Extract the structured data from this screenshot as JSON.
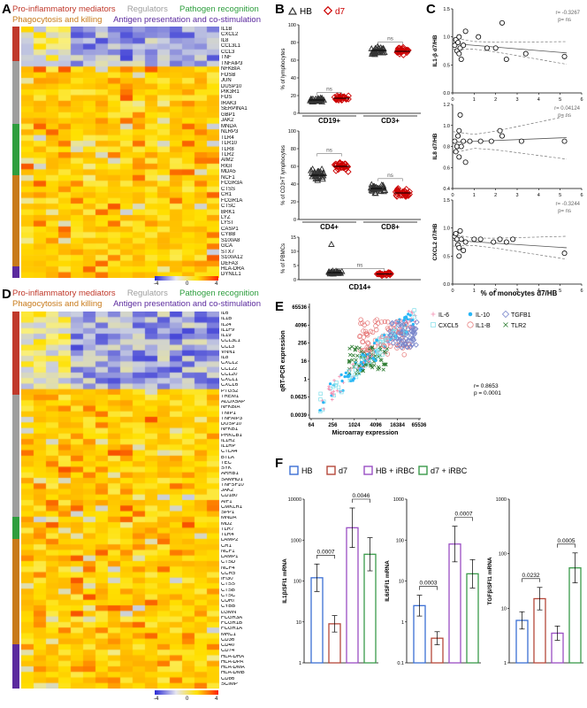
{
  "panels": {
    "A": "A",
    "B": "B",
    "C": "C",
    "D": "D",
    "E": "E",
    "F": "F"
  },
  "categories": {
    "pro_inflammatory": "Pro-inflammatory mediators",
    "regulators": "Regulators",
    "pathogen_recognition": "Pathogen recognition",
    "phagocytosis": "Phagocytosis and killing",
    "antigen": "Antigen presentation and co-stimulation"
  },
  "colors": {
    "pro_inflammatory": "#c0392b",
    "regulators": "#9e9e9e",
    "pathogen_recognition": "#2e9e3e",
    "phagocytosis": "#c87a1a",
    "antigen": "#5b2a9e"
  },
  "heatmapA": {
    "genes": [
      "IL1B",
      "CXCL2",
      "IL8",
      "CCL3L1",
      "CCL3",
      "TNF",
      "TNFAIP3",
      "NFKBIA",
      "FOSB",
      "JUN",
      "DUSP10",
      "PIK3R1",
      "FOS",
      "IRAK3",
      "SERPINA1",
      "GBP1",
      "JAK2",
      "MNDA",
      "NLRP3",
      "TLR4",
      "TLR10",
      "TLR8",
      "TLR2",
      "AIM2",
      "RIGI",
      "MDA5",
      "NCF1",
      "FCGR3A",
      "CTSS",
      "CR1",
      "FCGR1A",
      "CTSC",
      "BRK1",
      "LYZ",
      "LYST",
      "CASP1",
      "CYBB",
      "S100A8",
      "GCA",
      "STX7",
      "S100A12",
      "DEFA3",
      "HLA-DRA",
      "DYNLL1"
    ],
    "sidebar": [
      {
        "cat": "pro_inflammatory",
        "n": 6
      },
      {
        "cat": "regulators",
        "n": 11
      },
      {
        "cat": "pathogen_recognition",
        "n": 9
      },
      {
        "cat": "phagocytosis",
        "n": 16
      },
      {
        "cat": "antigen",
        "n": 2
      }
    ],
    "colorbar_ticks": [
      "-4",
      "0",
      "4"
    ]
  },
  "heatmapD": {
    "genes": [
      "IL6",
      "IL1B",
      "IL24",
      "IL1F9",
      "IL19",
      "CCL3L1",
      "CCL3",
      "VNN1",
      "IL8",
      "CXCL2",
      "CCL22",
      "CCL20",
      "CXCL1",
      "CXCL6",
      "PTGS2",
      "TREM1",
      "ALOX5AP",
      "NFKBIA",
      "TNIP1",
      "TNFAIP3",
      "DUSP10",
      "NFKB1",
      "PRKCB1",
      "IL1R2",
      "IL1RP",
      "CTLA4",
      "BTLA",
      "TEC",
      "SYK",
      "ARRB1",
      "SAMHD1",
      "TNFSF10",
      "JAK2",
      "CD180",
      "AIF1",
      "CMKLR1",
      "SPP1",
      "MNDA",
      "MD2",
      "TLR7",
      "TLR4",
      "LAMP2",
      "CR1",
      "NCF1",
      "LAMP1",
      "CTSD",
      "NCF4",
      "CCR5",
      "IFI30",
      "CTSS",
      "CTSB",
      "CTSC",
      "CORI",
      "CYBB",
      "LGMN",
      "FCGR3A",
      "FCGR1B",
      "FCGR1A",
      "MRC1",
      "CD36",
      "CD40",
      "CD74",
      "HLA-DRA",
      "HLA-DPA",
      "HLA-DMA",
      "HLA-DMB",
      "CD86",
      "SCIMP"
    ],
    "sidebar": [
      {
        "cat": "pro_inflammatory",
        "n": 15
      },
      {
        "cat": "regulators",
        "n": 22
      },
      {
        "cat": "pathogen_recognition",
        "n": 4
      },
      {
        "cat": "phagocytosis",
        "n": 19
      },
      {
        "cat": "antigen",
        "n": 8
      }
    ],
    "colorbar_ticks": [
      "-4",
      "0",
      "4"
    ]
  },
  "chart_data": [
    {
      "type": "scatter",
      "panel": "B-top",
      "legend": [
        "HB",
        "d7"
      ],
      "categories": [
        "CD19+",
        "CD3+"
      ],
      "ylabel": "% of lymphocytes",
      "ylim": [
        0,
        100
      ],
      "yticks": [
        "0",
        "20",
        "40",
        "60",
        "80",
        "100"
      ],
      "annotations": [
        "ns",
        "ns"
      ],
      "series": [
        {
          "name": "HB",
          "mean": [
            15,
            71
          ]
        },
        {
          "name": "d7",
          "mean": [
            17,
            70
          ]
        }
      ]
    },
    {
      "type": "scatter",
      "panel": "B-mid",
      "categories": [
        "CD4+",
        "CD8+"
      ],
      "ylabel": "% of CD3+T lymphocytes",
      "ylim": [
        0,
        100
      ],
      "yticks": [
        "0",
        "20",
        "40",
        "60",
        "80",
        "100"
      ],
      "annotations": [
        "ns",
        "ns"
      ],
      "series": [
        {
          "name": "HB",
          "mean": [
            50,
            35
          ]
        },
        {
          "name": "d7",
          "mean": [
            60,
            30
          ]
        }
      ]
    },
    {
      "type": "scatter",
      "panel": "B-bottom",
      "categories": [
        "CD14+"
      ],
      "ylabel": "% of PBMCs",
      "ylim": [
        0,
        15
      ],
      "yticks": [
        "0",
        "5",
        "10",
        "15"
      ],
      "annotations": [
        "ns"
      ],
      "series": [
        {
          "name": "HB",
          "mean": [
            2.5
          ]
        },
        {
          "name": "d7",
          "mean": [
            2
          ]
        }
      ]
    },
    {
      "type": "scatter",
      "panel": "C-1",
      "ylabel": "IL1-β d7/HB",
      "ylim": [
        0,
        1.5
      ],
      "yticks": [
        "0.0",
        "0.5",
        "1.0",
        "1.5"
      ],
      "xlim": [
        0,
        6
      ],
      "xticks": [
        "0",
        "1",
        "2",
        "3",
        "4",
        "5",
        "6"
      ],
      "stats": [
        "r= -0.3267",
        "p= ns"
      ],
      "points": [
        [
          0.1,
          0.85
        ],
        [
          0.15,
          0.95
        ],
        [
          0.2,
          0.75
        ],
        [
          0.25,
          0.9
        ],
        [
          0.3,
          1.0
        ],
        [
          0.3,
          0.7
        ],
        [
          0.35,
          0.8
        ],
        [
          0.4,
          0.6
        ],
        [
          0.5,
          0.85
        ],
        [
          0.6,
          1.1
        ],
        [
          1.2,
          1.0
        ],
        [
          1.6,
          0.8
        ],
        [
          2.0,
          0.8
        ],
        [
          2.3,
          1.25
        ],
        [
          2.5,
          0.6
        ],
        [
          3.4,
          0.7
        ],
        [
          5.2,
          0.65
        ]
      ]
    },
    {
      "type": "scatter",
      "panel": "C-2",
      "ylabel": "IL8 d7/HB",
      "ylim": [
        0.4,
        1.2
      ],
      "yticks": [
        "0.4",
        "0.6",
        "0.8",
        "1.0",
        "1.2"
      ],
      "xlim": [
        0,
        6
      ],
      "xticks": [
        "0",
        "1",
        "2",
        "3",
        "4",
        "5",
        "6"
      ],
      "stats": [
        "r= 0.04124",
        "p= ns"
      ],
      "points": [
        [
          0.1,
          0.85
        ],
        [
          0.15,
          0.75
        ],
        [
          0.2,
          0.8
        ],
        [
          0.25,
          0.9
        ],
        [
          0.3,
          0.95
        ],
        [
          0.3,
          0.7
        ],
        [
          0.35,
          1.1
        ],
        [
          0.4,
          0.8
        ],
        [
          0.5,
          0.85
        ],
        [
          0.6,
          0.65
        ],
        [
          0.8,
          0.85
        ],
        [
          1.3,
          0.85
        ],
        [
          1.8,
          0.85
        ],
        [
          2.2,
          0.95
        ],
        [
          2.3,
          0.9
        ],
        [
          3.2,
          0.85
        ],
        [
          5.2,
          0.85
        ]
      ]
    },
    {
      "type": "scatter",
      "panel": "C-3",
      "ylabel": "CXCL2 d7/HB",
      "ylim": [
        0,
        1.5
      ],
      "yticks": [
        "0.0",
        "0.5",
        "1.0",
        "1.5"
      ],
      "xlim": [
        0,
        6
      ],
      "xticks": [
        "0",
        "1",
        "2",
        "3",
        "4",
        "5",
        "6"
      ],
      "xlabel": "% of monocytes d7/HB",
      "stats": [
        "r= -0.3244",
        "p= ns"
      ],
      "points": [
        [
          0.1,
          0.85
        ],
        [
          0.15,
          0.9
        ],
        [
          0.2,
          0.8
        ],
        [
          0.25,
          0.7
        ],
        [
          0.3,
          0.65
        ],
        [
          0.3,
          0.5
        ],
        [
          0.35,
          0.95
        ],
        [
          0.4,
          0.8
        ],
        [
          0.5,
          0.6
        ],
        [
          0.6,
          0.75
        ],
        [
          1.0,
          0.8
        ],
        [
          1.3,
          0.8
        ],
        [
          1.9,
          0.75
        ],
        [
          2.2,
          0.8
        ],
        [
          2.5,
          0.75
        ],
        [
          2.8,
          0.8
        ],
        [
          5.2,
          0.55
        ]
      ]
    },
    {
      "type": "scatter",
      "panel": "E",
      "xlabel": "Microarray expression",
      "ylabel": "qRT-PCR expression",
      "xticks": [
        "64",
        "256",
        "1024",
        "4096",
        "16384",
        "65536"
      ],
      "yticks": [
        "65536",
        "4096",
        "256",
        "16",
        "1",
        "0.0625",
        "0.0039"
      ],
      "stats": [
        "r= 0.8653",
        "p = 0.0001"
      ],
      "legend": [
        "IL-6",
        "IL-10",
        "TGFB1",
        "CXCL5",
        "IL1-B",
        "TLR2"
      ]
    },
    {
      "type": "bar",
      "panel": "F-1",
      "legend": [
        "HB",
        "d7",
        "HB + iRBC",
        "d7 + iRBC"
      ],
      "categories": [
        "HB",
        "d7",
        "HB + iRBC",
        "d7 + iRBC"
      ],
      "values": [
        120,
        9,
        2000,
        450
      ],
      "ylabel": "IL1β/SFI1 mRNA",
      "yticks": [
        "1",
        "10",
        "100",
        "1000",
        "10000"
      ],
      "pvalues": [
        "0.0007",
        "0.0046"
      ]
    },
    {
      "type": "bar",
      "panel": "F-2",
      "categories": [
        "HB",
        "d7",
        "HB + iRBC",
        "d7 + iRBC"
      ],
      "values": [
        2.5,
        0.4,
        80,
        15
      ],
      "ylabel": "IL6/SFI1 mRNA",
      "yticks": [
        "0.1",
        "1",
        "10",
        "100",
        "1000"
      ],
      "pvalues": [
        "0.0003",
        "0.0007"
      ]
    },
    {
      "type": "bar",
      "panel": "F-3",
      "categories": [
        "HB",
        "d7",
        "HB + iRBC",
        "d7 + iRBC"
      ],
      "values": [
        6,
        15,
        3.5,
        55
      ],
      "ylabel": "TGFβ/SFI1 mRNA",
      "yticks": [
        "1",
        "10",
        "100",
        "1000"
      ],
      "pvalues": [
        "0.0232",
        "0.0005"
      ]
    }
  ]
}
